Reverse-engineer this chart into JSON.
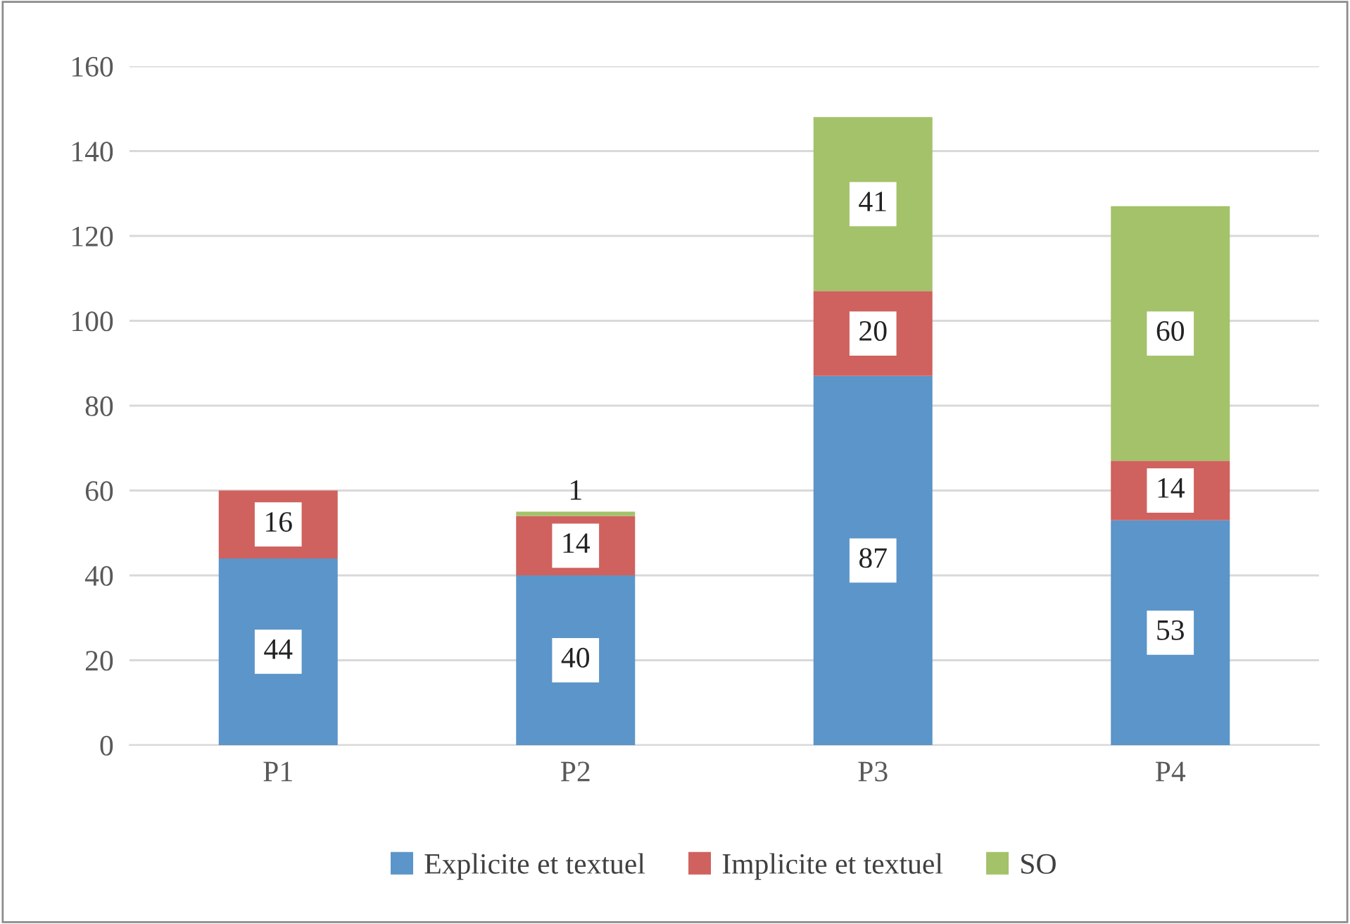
{
  "chart_data": {
    "type": "bar",
    "stacked": true,
    "categories": [
      "P1",
      "P2",
      "P3",
      "P4"
    ],
    "series": [
      {
        "name": "Explicite et textuel",
        "color": "#5b95c9",
        "values": [
          44,
          40,
          87,
          53
        ]
      },
      {
        "name": "Implicite et textuel",
        "color": "#cf625e",
        "values": [
          16,
          14,
          20,
          14
        ]
      },
      {
        "name": "SO",
        "color": "#a4c26a",
        "values": [
          null,
          1,
          41,
          60
        ]
      }
    ],
    "ylim": [
      0,
      160
    ],
    "yticks": [
      0,
      20,
      40,
      60,
      80,
      100,
      120,
      140,
      160
    ],
    "grid": "y",
    "legend": "bottom",
    "data_labels": true
  }
}
